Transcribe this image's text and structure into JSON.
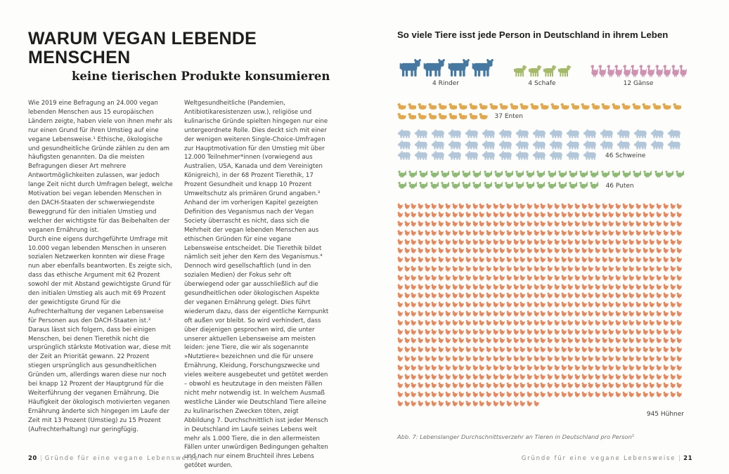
{
  "left_page": {
    "title": "WARUM VEGAN LEBENDE MENSCHEN",
    "subtitle": "keine tierischen Produkte konsumieren",
    "column1": {
      "paragraph1": "Wie 2019 eine Befragung an 24.000 vegan lebenden Menschen aus 15 europäischen Ländern zeigte, haben viele von ihnen mehr als nur einen Grund für ihren Umstieg auf eine vegane Lebensweise.¹ Ethische, ökologische und gesundheitliche Gründe zählen zu den am häufigsten genannten. Da die meisten Befragungen dieser Art mehrere Antwortmöglichkeiten zulassen, war jedoch lange Zeit nicht durch Umfragen belegt, welche Motivation bei vegan lebenden Menschen in den DACH-Staaten der schwerwiegendste Beweggrund für den initialen Umstieg und welcher der wichtigste für das Beibehalten der veganen Ernährung ist.",
      "paragraph2": "Durch eine eigens durchgeführte Umfrage mit 10.000 vegan lebenden Menschen in unseren sozialen Netzwerken konnten wir diese Frage nun aber ebenfalls beantworten. Es zeigte sich, dass das ethische Argument mit 62 Prozent sowohl der mit Abstand gewichtigste Grund für den initialen Umstieg als auch mit 69 Prozent der gewichtigste Grund für die Aufrechterhaltung der veganen Lebensweise für Personen aus den DACH-Staaten ist.² Daraus lässt sich folgern, dass bei einigen Menschen, bei denen Tierethik nicht die ursprünglich stärkste Motivation war, diese mit der Zeit an Priorität gewann. 22 Prozent stiegen ursprünglich aus gesundheitlichen Gründen um, allerdings waren diese nur noch bei knapp 12 Prozent der Hauptgrund für die Weiterführung der veganen Ernährung. Die Häufigkeit der ökologisch motivierten veganen Ernährung änderte sich hingegen im Laufe der Zeit mit 13 Prozent (Umstieg) zu 15 Prozent (Aufrechterhaltung) nur geringfügig."
    },
    "column2": {
      "paragraph1": "Weltgesundheitliche (Pandemien, Antibiotikaresistenzen usw.), religiöse und kulinarische Gründe spielten hingegen nur eine untergeordnete Rolle. Dies deckt sich mit einer der wenigen weiteren Single-Choice-Umfragen zur Hauptmotivation für den Umstieg mit über 12.000 Teilnehmer*innen (vorwiegend aus Australien, USA, Kanada und dem Vereinigten Königreich), in der 68 Prozent Tierethik, 17 Prozent Gesundheit und knapp 10 Prozent Umweltschutz als primären Grund angaben.³ Anhand der im vorherigen Kapitel gezeigten Definition des Veganismus nach der Vegan Society überrascht es nicht, dass sich die Mehrheit der vegan lebenden Menschen aus ethischen Gründen für eine vegane Lebensweise entscheidet. Die Tierethik bildet nämlich seit jeher den Kern des Veganismus.⁴ Dennoch wird gesellschaftlich (und in den sozialen Medien) der Fokus sehr oft überwiegend oder gar ausschließlich auf die gesundheitlichen oder ökologischen Aspekte der veganen Ernährung gelegt. Dies führt wiederum dazu, dass der eigentliche Kernpunkt oft außen vor bleibt. So wird verhindert, dass über diejenigen gesprochen wird, die unter unserer aktuellen Lebensweise am meisten leiden: jene Tiere, die wir als sogenannte »Nutztiere« bezeichnen und die für unsere Ernährung, Kleidung, Forschungszwecke und vieles weitere ausgebeutet und getötet werden – obwohl es heutzutage in den meisten Fällen nicht mehr notwendig ist. In welchem Ausmaß westliche Länder wie Deutschland Tiere alleine zu kulinarischen Zwecken töten, zeigt Abbildung 7. Durchschnittlich isst jeder Mensch in Deutschland im Laufe seines Lebens weit mehr als 1.000 Tiere, die in den allermeisten Fällen unter unwürdigen Bedingungen gehalten und nach nur einem Bruchteil ihres Lebens getötet wurden."
    },
    "footer": {
      "page_number": "20",
      "divider": "|",
      "text": "Gründe für eine vegane Lebensweise"
    }
  },
  "right_page": {
    "footer": {
      "text": "Gründe für eine vegane Lebensweise",
      "divider": "|",
      "page_number": "21"
    }
  },
  "chart_data": {
    "type": "pictogram",
    "title": "So viele Tiere isst jede Person in Deutschland in ihrem Leben",
    "caption": "Abb. 7: Lebenslanger Durchschnittsverzehr an Tieren in Deutschland pro Person⁵",
    "groups": [
      {
        "animal": "Rinder",
        "icon": "cow-icon",
        "count": 4,
        "label": "4 Rinder",
        "color": "#4679a1"
      },
      {
        "animal": "Schafe",
        "icon": "sheep-icon",
        "count": 4,
        "label": "4 Schafe",
        "color": "#a5ba68"
      },
      {
        "animal": "Gänse",
        "icon": "goose-icon",
        "count": 12,
        "label": "12 Gänse",
        "color": "#cf92b0"
      },
      {
        "animal": "Enten",
        "icon": "duck-icon",
        "count": 37,
        "label": "37 Enten",
        "color": "#e3a84c"
      },
      {
        "animal": "Schweine",
        "icon": "pig-icon",
        "count": 46,
        "label": "46 Schweine",
        "color": "#b2c7da"
      },
      {
        "animal": "Puten",
        "icon": "turkey-icon",
        "count": 46,
        "label": "46 Puten",
        "color": "#8ebb74"
      },
      {
        "animal": "Hühner",
        "icon": "chicken-icon",
        "count": 945,
        "label": "945 Hühner",
        "color": "#e8875c"
      }
    ]
  }
}
